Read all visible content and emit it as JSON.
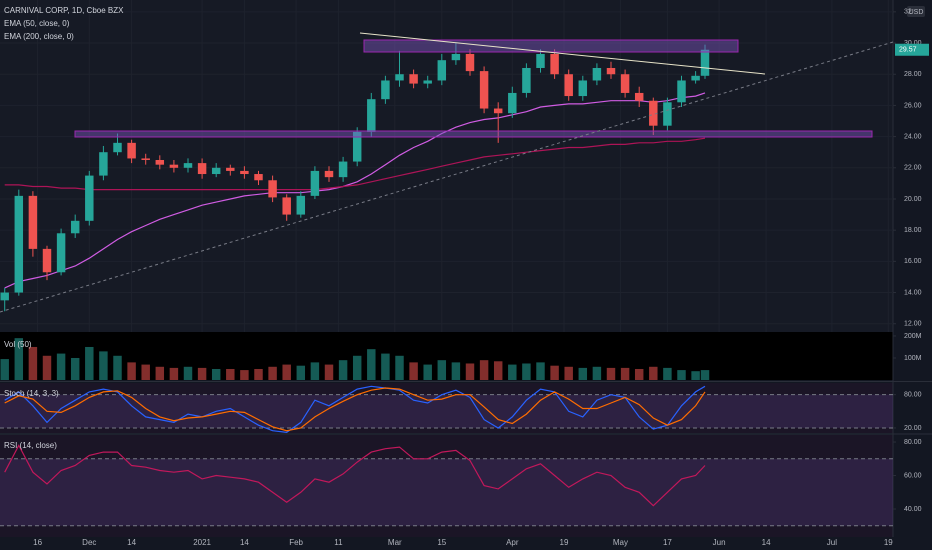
{
  "chart_data": [
    {
      "type": "candlestick",
      "title": "CARNIVAL CORP, 1D, Cboe BZX",
      "currency": "USD",
      "up_color": "#26a69a",
      "down_color": "#ef5350",
      "x": [
        -6,
        -3,
        0,
        3,
        6,
        9,
        12,
        15,
        18,
        21,
        24,
        27,
        30,
        33,
        36,
        39,
        42,
        45,
        48,
        51,
        54,
        57,
        60,
        63,
        66,
        69,
        72,
        75,
        78,
        81,
        84,
        87,
        90,
        93,
        96,
        99,
        102,
        105,
        108,
        111,
        114,
        117,
        120,
        123,
        126,
        129,
        132,
        135,
        138,
        141,
        143
      ],
      "open": [
        13.5,
        14.0,
        20.2,
        16.8,
        15.3,
        17.8,
        18.6,
        21.5,
        23.0,
        23.6,
        22.6,
        22.5,
        22.2,
        22.0,
        22.3,
        21.6,
        22.0,
        21.8,
        21.6,
        21.2,
        20.1,
        19.0,
        20.2,
        21.8,
        21.4,
        22.4,
        24.3,
        26.4,
        27.6,
        28.0,
        27.4,
        27.6,
        28.9,
        29.3,
        28.2,
        25.8,
        25.5,
        26.8,
        28.4,
        29.3,
        28.0,
        26.6,
        27.6,
        28.4,
        28.0,
        26.8,
        26.3,
        24.7,
        26.2,
        27.6,
        27.9
      ],
      "high": [
        14.3,
        20.6,
        20.5,
        17.0,
        18.1,
        19.0,
        21.8,
        23.4,
        24.2,
        23.8,
        22.9,
        22.8,
        22.5,
        22.6,
        22.6,
        22.3,
        22.2,
        22.1,
        21.8,
        21.5,
        20.3,
        20.5,
        22.1,
        22.1,
        22.7,
        24.6,
        26.8,
        27.9,
        29.5,
        28.3,
        27.9,
        29.3,
        30.0,
        29.6,
        28.5,
        26.2,
        27.2,
        28.7,
        29.6,
        29.6,
        28.3,
        27.9,
        28.7,
        28.8,
        28.3,
        27.2,
        26.5,
        26.5,
        27.9,
        28.2,
        29.9
      ],
      "low": [
        12.8,
        13.8,
        16.3,
        14.8,
        15.1,
        17.5,
        18.3,
        21.2,
        22.8,
        22.3,
        22.2,
        21.9,
        21.7,
        21.7,
        21.3,
        21.4,
        21.5,
        21.3,
        20.9,
        19.8,
        18.6,
        18.8,
        20.0,
        21.1,
        21.1,
        22.1,
        24.0,
        26.1,
        27.2,
        27.1,
        27.1,
        27.3,
        28.6,
        27.9,
        25.5,
        23.6,
        25.2,
        26.5,
        28.1,
        27.7,
        26.3,
        26.3,
        27.3,
        27.7,
        26.5,
        25.9,
        24.1,
        24.4,
        25.9,
        27.4,
        27.7
      ],
      "close": [
        14.0,
        20.2,
        16.8,
        15.3,
        17.8,
        18.6,
        21.5,
        23.0,
        23.6,
        22.6,
        22.5,
        22.2,
        22.0,
        22.3,
        21.6,
        22.0,
        21.8,
        21.6,
        21.2,
        20.1,
        19.0,
        20.2,
        21.8,
        21.4,
        22.4,
        24.3,
        26.4,
        27.6,
        28.0,
        27.4,
        27.6,
        28.9,
        29.3,
        28.2,
        25.8,
        25.5,
        26.8,
        28.4,
        29.3,
        28.0,
        26.6,
        27.6,
        28.4,
        28.0,
        26.8,
        26.3,
        24.7,
        26.2,
        27.6,
        27.9,
        29.57
      ],
      "series": [
        {
          "name": "EMA (50, close, 0)",
          "color": "#d05ce3",
          "values": [
            14.3,
            14.7,
            14.9,
            15.1,
            15.4,
            15.7,
            16.2,
            16.8,
            17.4,
            17.9,
            18.3,
            18.7,
            19.0,
            19.3,
            19.6,
            19.8,
            20.0,
            20.2,
            20.3,
            20.4,
            20.4,
            20.4,
            20.5,
            20.6,
            20.8,
            21.1,
            21.6,
            22.2,
            22.8,
            23.3,
            23.7,
            24.2,
            24.6,
            24.9,
            25.1,
            25.2,
            25.4,
            25.6,
            25.9,
            26.0,
            26.1,
            26.1,
            26.2,
            26.3,
            26.3,
            26.3,
            26.2,
            26.3,
            26.5,
            26.6,
            26.8
          ]
        },
        {
          "name": "EMA (200, close, 0)",
          "color": "#ad1457",
          "values": [
            20.9,
            20.9,
            20.8,
            20.8,
            20.7,
            20.7,
            20.6,
            20.6,
            20.6,
            20.6,
            20.6,
            20.6,
            20.6,
            20.6,
            20.6,
            20.6,
            20.6,
            20.6,
            20.6,
            20.6,
            20.6,
            20.6,
            20.6,
            20.7,
            20.8,
            20.9,
            21.1,
            21.3,
            21.5,
            21.7,
            21.9,
            22.1,
            22.3,
            22.5,
            22.7,
            22.8,
            22.9,
            23.0,
            23.1,
            23.2,
            23.3,
            23.3,
            23.4,
            23.5,
            23.5,
            23.6,
            23.6,
            23.7,
            23.7,
            23.8,
            23.9
          ]
        }
      ],
      "xlim": [
        -7,
        183
      ],
      "xticks": [
        {
          "value": 1,
          "label": "16"
        },
        {
          "value": 12,
          "label": "Dec"
        },
        {
          "value": 21,
          "label": "14"
        },
        {
          "value": 36,
          "label": "2021"
        },
        {
          "value": 45,
          "label": "14"
        },
        {
          "value": 56,
          "label": "Feb"
        },
        {
          "value": 65,
          "label": "11"
        },
        {
          "value": 77,
          "label": "Mar"
        },
        {
          "value": 87,
          "label": "15"
        },
        {
          "value": 102,
          "label": "Apr"
        },
        {
          "value": 113,
          "label": "19"
        },
        {
          "value": 125,
          "label": "May"
        },
        {
          "value": 135,
          "label": "17"
        },
        {
          "value": 146,
          "label": "Jun"
        },
        {
          "value": 156,
          "label": "14"
        },
        {
          "value": 170,
          "label": "Jul"
        },
        {
          "value": 182,
          "label": "19"
        }
      ],
      "ylim": [
        11.47,
        32.76
      ],
      "yticks": [
        {
          "value": 12,
          "label": "12.00"
        },
        {
          "value": 14,
          "label": "14.00"
        },
        {
          "value": 16,
          "label": "16.00"
        },
        {
          "value": 18,
          "label": "18.00"
        },
        {
          "value": 20,
          "label": "20.00"
        },
        {
          "value": 22,
          "label": "22.00"
        },
        {
          "value": 24,
          "label": "24.00"
        },
        {
          "value": 26,
          "label": "26.00"
        },
        {
          "value": 28,
          "label": "28.00"
        },
        {
          "value": 30,
          "label": "30.00"
        },
        32
      ],
      "grid": true
    },
    {
      "type": "bar",
      "title": "Vol (50)",
      "values": [
        95,
        190,
        150,
        110,
        120,
        100,
        150,
        130,
        110,
        80,
        70,
        60,
        55,
        60,
        55,
        50,
        50,
        45,
        50,
        60,
        70,
        65,
        80,
        70,
        90,
        110,
        140,
        120,
        110,
        80,
        70,
        90,
        80,
        75,
        90,
        85,
        70,
        75,
        80,
        65,
        60,
        55,
        60,
        55,
        55,
        50,
        60,
        55,
        45,
        40,
        45
      ],
      "ylim": [
        0,
        218
      ],
      "yticks": [
        {
          "value": 100,
          "label": "100M"
        },
        {
          "value": 200,
          "label": "200M"
        }
      ]
    },
    {
      "type": "line",
      "title": "Stoch (14, 3, 3)",
      "bands": [
        20,
        80
      ],
      "series": [
        {
          "color": "#2962ff",
          "values": [
            70,
            85,
            60,
            30,
            55,
            70,
            85,
            90,
            85,
            60,
            40,
            35,
            30,
            45,
            40,
            50,
            55,
            40,
            25,
            15,
            12,
            30,
            70,
            60,
            75,
            90,
            95,
            92,
            88,
            70,
            65,
            80,
            88,
            75,
            35,
            20,
            40,
            70,
            90,
            85,
            50,
            40,
            70,
            80,
            75,
            40,
            18,
            25,
            60,
            85,
            95
          ]
        },
        {
          "color": "#ff6d00",
          "values": [
            65,
            78,
            72,
            50,
            48,
            60,
            75,
            85,
            87,
            75,
            55,
            40,
            33,
            38,
            40,
            45,
            50,
            48,
            35,
            22,
            15,
            20,
            40,
            55,
            68,
            80,
            88,
            92,
            90,
            80,
            70,
            72,
            80,
            80,
            58,
            35,
            28,
            45,
            70,
            85,
            72,
            55,
            55,
            65,
            75,
            62,
            38,
            25,
            35,
            60,
            85
          ]
        }
      ],
      "ylim": [
        12,
        101
      ],
      "yticks": [
        {
          "value": 20,
          "label": "20.00"
        },
        {
          "value": 80,
          "label": "80.00"
        }
      ]
    },
    {
      "type": "line",
      "title": "RSI (14, close)",
      "bands": [
        30,
        70
      ],
      "series": [
        {
          "color": "#c2185b",
          "values": [
            62,
            78,
            62,
            55,
            63,
            66,
            72,
            74,
            74,
            66,
            65,
            63,
            62,
            63,
            58,
            60,
            59,
            58,
            56,
            50,
            44,
            50,
            58,
            56,
            61,
            68,
            74,
            76,
            77,
            70,
            70,
            74,
            75,
            69,
            54,
            52,
            58,
            64,
            67,
            60,
            53,
            58,
            62,
            60,
            53,
            50,
            42,
            50,
            58,
            60,
            66
          ]
        }
      ],
      "ylim": [
        23.3,
        84.2
      ],
      "yticks": [
        {
          "value": 40,
          "label": "40.00"
        },
        {
          "value": 60,
          "label": "60.00"
        },
        {
          "value": 80,
          "label": "80.00"
        }
      ]
    }
  ]
}
